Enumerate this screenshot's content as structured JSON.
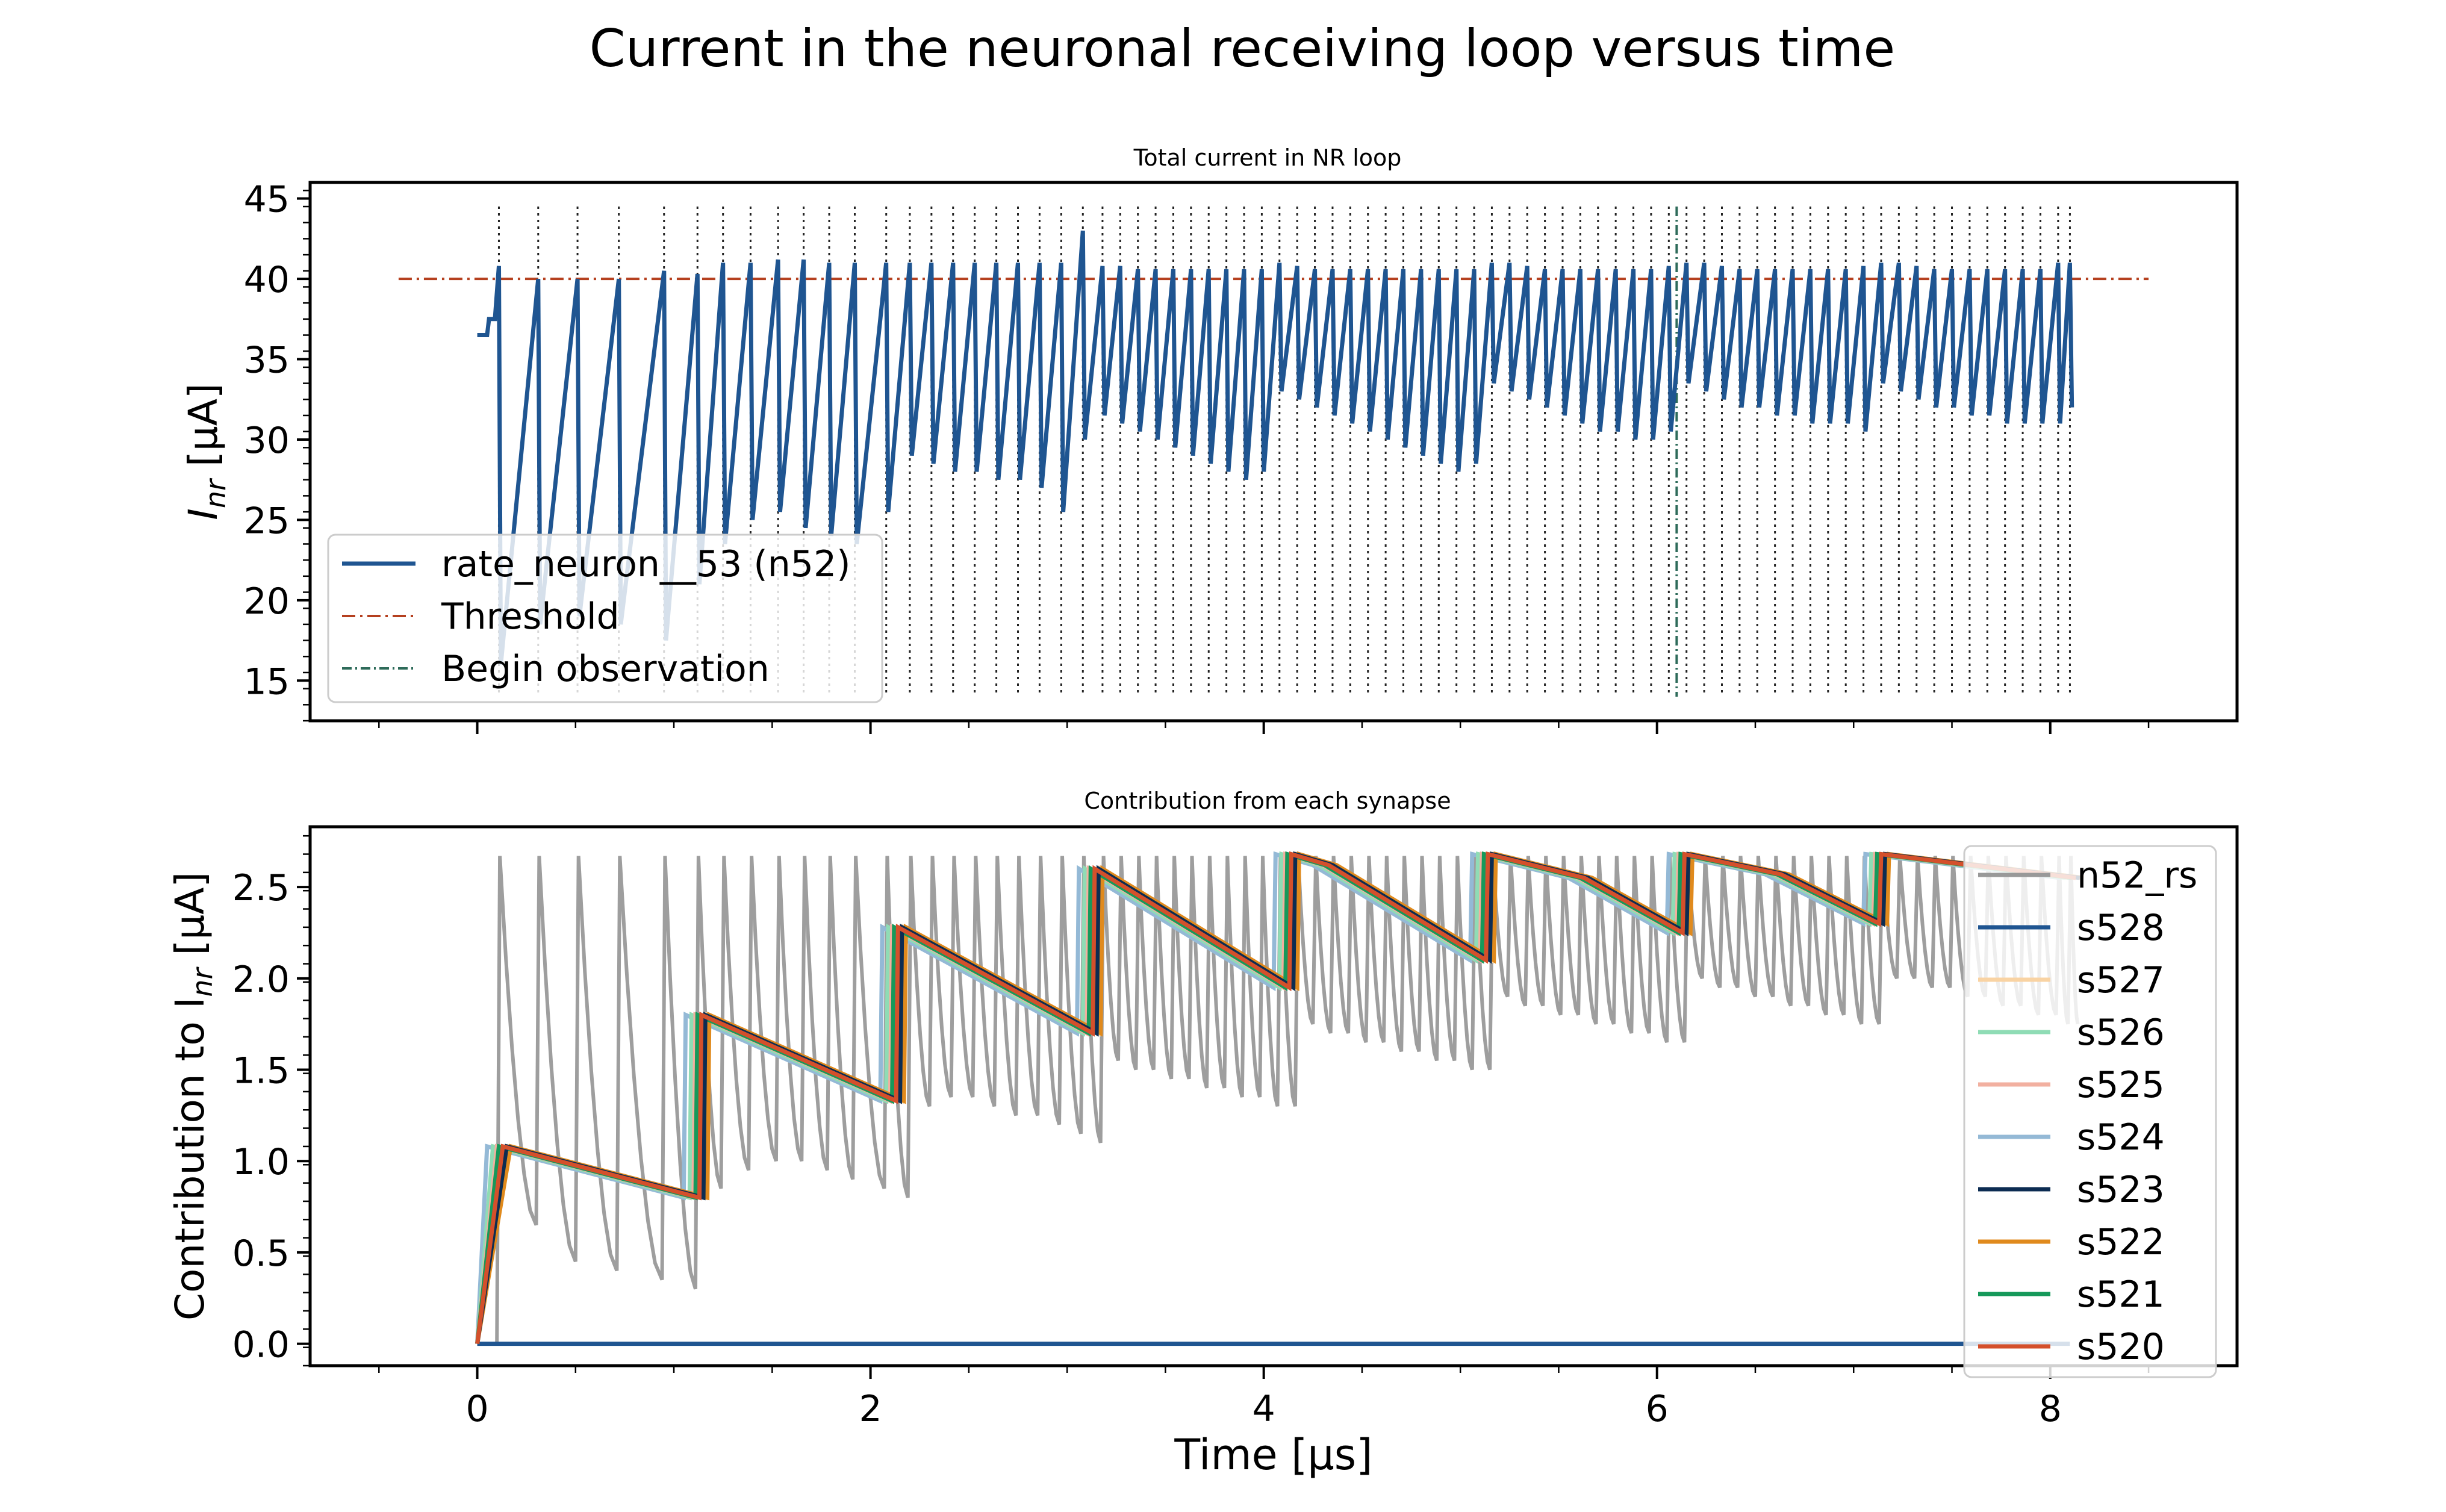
{
  "figure": {
    "title": "Current in the neuronal receiving loop versus time"
  },
  "chart_data": [
    {
      "type": "line",
      "title": "Total current in NR loop",
      "xlabel": "",
      "ylabel_main": "I",
      "ylabel_sub": "nr",
      "ylabel_unit": " [μA]",
      "xlim": [
        -0.85,
        8.95
      ],
      "ylim": [
        12.5,
        46.0
      ],
      "xticks": [
        0,
        2,
        4,
        6,
        8
      ],
      "yticks": [
        15,
        20,
        25,
        30,
        35,
        40,
        45
      ],
      "threshold": 40,
      "threshold_range": [
        -0.4,
        8.5
      ],
      "observation_start": 6.1,
      "spike_times": [
        0.11,
        0.31,
        0.51,
        0.72,
        0.95,
        1.12,
        1.25,
        1.39,
        1.53,
        1.66,
        1.79,
        1.92,
        2.08,
        2.2,
        2.31,
        2.42,
        2.53,
        2.64,
        2.75,
        2.86,
        2.97,
        3.08,
        3.18,
        3.27,
        3.36,
        3.45,
        3.54,
        3.63,
        3.72,
        3.81,
        3.9,
        3.99,
        4.08,
        4.17,
        4.26,
        4.35,
        4.44,
        4.53,
        4.62,
        4.71,
        4.8,
        4.89,
        4.98,
        5.07,
        5.16,
        5.25,
        5.34,
        5.43,
        5.52,
        5.61,
        5.7,
        5.79,
        5.88,
        5.97,
        6.06,
        6.15,
        6.24,
        6.33,
        6.42,
        6.51,
        6.6,
        6.69,
        6.78,
        6.87,
        6.96,
        7.05,
        7.14,
        7.23,
        7.32,
        7.41,
        7.5,
        7.59,
        7.68,
        7.77,
        7.86,
        7.95,
        8.04,
        8.1
      ],
      "spike_line_range": [
        14,
        44.5
      ],
      "series": [
        {
          "name": "rate_neuron__53 (n52)",
          "color": "#1f5591",
          "values": [
            [
              0,
              36.5
            ],
            [
              0.05,
              36.5
            ],
            [
              0.06,
              37.5
            ],
            [
              0.09,
              37.5
            ],
            [
              0.11,
              40.8
            ],
            [
              0.12,
              16.0
            ],
            [
              0.31,
              40.0
            ],
            [
              0.32,
              18.5
            ],
            [
              0.51,
              40.0
            ],
            [
              0.52,
              19.0
            ],
            [
              0.72,
              40.0
            ],
            [
              0.73,
              18.5
            ],
            [
              0.95,
              40.5
            ],
            [
              0.96,
              17.5
            ],
            [
              1.12,
              40.3
            ],
            [
              1.13,
              21.0
            ],
            [
              1.25,
              41.0
            ],
            [
              1.26,
              23.5
            ],
            [
              1.39,
              41.0
            ],
            [
              1.4,
              25.0
            ],
            [
              1.53,
              41.2
            ],
            [
              1.54,
              25.5
            ],
            [
              1.66,
              41.2
            ],
            [
              1.67,
              24.5
            ],
            [
              1.79,
              41.0
            ],
            [
              1.8,
              24.0
            ],
            [
              1.92,
              41.0
            ],
            [
              1.93,
              23.5
            ],
            [
              2.08,
              41.0
            ],
            [
              2.09,
              25.5
            ],
            [
              2.2,
              41.0
            ],
            [
              2.21,
              29.0
            ],
            [
              2.31,
              41.0
            ],
            [
              2.32,
              28.5
            ],
            [
              2.42,
              41.0
            ],
            [
              2.43,
              28.0
            ],
            [
              2.53,
              41.0
            ],
            [
              2.54,
              28.0
            ],
            [
              2.64,
              41.0
            ],
            [
              2.65,
              27.5
            ],
            [
              2.75,
              41.0
            ],
            [
              2.76,
              27.5
            ],
            [
              2.86,
              41.0
            ],
            [
              2.87,
              27.0
            ],
            [
              2.97,
              41.0
            ],
            [
              2.98,
              25.5
            ],
            [
              3.08,
              43.0
            ],
            [
              3.09,
              30.0
            ],
            [
              3.18,
              40.8
            ],
            [
              3.19,
              31.5
            ],
            [
              3.27,
              40.8
            ],
            [
              3.28,
              31.0
            ],
            [
              3.36,
              40.6
            ],
            [
              3.37,
              30.5
            ],
            [
              3.45,
              40.6
            ],
            [
              3.46,
              30.0
            ],
            [
              3.54,
              40.6
            ],
            [
              3.55,
              29.5
            ],
            [
              3.63,
              40.6
            ],
            [
              3.64,
              29.0
            ],
            [
              3.72,
              40.6
            ],
            [
              3.73,
              28.5
            ],
            [
              3.81,
              40.6
            ],
            [
              3.82,
              28.0
            ],
            [
              3.9,
              40.6
            ],
            [
              3.91,
              27.5
            ],
            [
              3.99,
              40.6
            ],
            [
              4.0,
              28.0
            ],
            [
              4.08,
              41.0
            ],
            [
              4.09,
              33.0
            ],
            [
              4.17,
              40.8
            ],
            [
              4.18,
              32.5
            ],
            [
              4.26,
              40.6
            ],
            [
              4.27,
              32.0
            ],
            [
              4.35,
              40.6
            ],
            [
              4.36,
              31.5
            ],
            [
              4.44,
              40.6
            ],
            [
              4.45,
              31.0
            ],
            [
              4.53,
              40.6
            ],
            [
              4.54,
              30.5
            ],
            [
              4.62,
              40.6
            ],
            [
              4.63,
              30.0
            ],
            [
              4.71,
              40.6
            ],
            [
              4.72,
              29.5
            ],
            [
              4.8,
              40.6
            ],
            [
              4.81,
              29.0
            ],
            [
              4.89,
              40.6
            ],
            [
              4.9,
              28.5
            ],
            [
              4.98,
              40.6
            ],
            [
              4.99,
              28.0
            ],
            [
              5.07,
              40.6
            ],
            [
              5.08,
              28.5
            ],
            [
              5.16,
              41.0
            ],
            [
              5.17,
              33.5
            ],
            [
              5.25,
              41.0
            ],
            [
              5.26,
              33.0
            ],
            [
              5.34,
              40.8
            ],
            [
              5.35,
              32.5
            ],
            [
              5.43,
              40.6
            ],
            [
              5.44,
              32.0
            ],
            [
              5.52,
              40.6
            ],
            [
              5.53,
              31.5
            ],
            [
              5.61,
              40.6
            ],
            [
              5.62,
              31.0
            ],
            [
              5.7,
              40.6
            ],
            [
              5.71,
              30.5
            ],
            [
              5.79,
              40.6
            ],
            [
              5.8,
              30.5
            ],
            [
              5.88,
              40.6
            ],
            [
              5.89,
              30.0
            ],
            [
              5.97,
              40.6
            ],
            [
              5.98,
              30.0
            ],
            [
              6.06,
              40.8
            ],
            [
              6.07,
              30.5
            ],
            [
              6.15,
              41.0
            ],
            [
              6.16,
              33.5
            ],
            [
              6.24,
              41.0
            ],
            [
              6.25,
              33.0
            ],
            [
              6.33,
              40.8
            ],
            [
              6.34,
              32.5
            ],
            [
              6.42,
              40.6
            ],
            [
              6.43,
              32.0
            ],
            [
              6.51,
              40.6
            ],
            [
              6.52,
              32.0
            ],
            [
              6.6,
              40.6
            ],
            [
              6.61,
              31.5
            ],
            [
              6.69,
              40.6
            ],
            [
              6.7,
              31.5
            ],
            [
              6.78,
              40.6
            ],
            [
              6.79,
              31.0
            ],
            [
              6.87,
              40.6
            ],
            [
              6.88,
              31.0
            ],
            [
              6.96,
              40.6
            ],
            [
              6.97,
              31.0
            ],
            [
              7.05,
              40.8
            ],
            [
              7.06,
              30.5
            ],
            [
              7.14,
              41.0
            ],
            [
              7.15,
              33.5
            ],
            [
              7.23,
              41.0
            ],
            [
              7.24,
              33.0
            ],
            [
              7.32,
              40.8
            ],
            [
              7.33,
              32.5
            ],
            [
              7.41,
              40.6
            ],
            [
              7.42,
              32.0
            ],
            [
              7.5,
              40.6
            ],
            [
              7.51,
              32.0
            ],
            [
              7.59,
              40.6
            ],
            [
              7.6,
              31.5
            ],
            [
              7.68,
              40.6
            ],
            [
              7.69,
              31.5
            ],
            [
              7.77,
              40.6
            ],
            [
              7.78,
              31.0
            ],
            [
              7.86,
              40.6
            ],
            [
              7.87,
              31.0
            ],
            [
              7.95,
              40.6
            ],
            [
              7.96,
              31.0
            ],
            [
              8.04,
              41.0
            ],
            [
              8.05,
              31.0
            ],
            [
              8.1,
              41.0
            ],
            [
              8.11,
              32.0
            ]
          ]
        },
        {
          "name": "Threshold",
          "color": "#b5401f"
        },
        {
          "name": "Begin observation",
          "color": "#2e6b5a"
        }
      ],
      "legend": "lower-left"
    },
    {
      "type": "line",
      "title": "Contribution from each synapse",
      "xlabel": "Time [μs]",
      "ylabel_main": "Contribution to I",
      "ylabel_sub": "nr",
      "ylabel_unit": " [μA]",
      "xlim": [
        -0.85,
        8.95
      ],
      "ylim": [
        -0.12,
        2.83
      ],
      "xticks": [
        0,
        2,
        4,
        6,
        8
      ],
      "yticks": [
        0.0,
        0.5,
        1.0,
        1.5,
        2.0,
        2.5
      ],
      "legend": "upper-right",
      "spike_times": [
        0.11,
        0.31,
        0.51,
        0.72,
        0.95,
        1.12,
        1.25,
        1.39,
        1.53,
        1.66,
        1.79,
        1.92,
        2.08,
        2.2,
        2.31,
        2.42,
        2.53,
        2.64,
        2.75,
        2.86,
        2.97,
        3.08,
        3.18,
        3.27,
        3.36,
        3.45,
        3.54,
        3.63,
        3.72,
        3.81,
        3.9,
        3.99,
        4.08,
        4.17,
        4.26,
        4.35,
        4.44,
        4.53,
        4.62,
        4.71,
        4.8,
        4.89,
        4.98,
        5.07,
        5.16,
        5.25,
        5.34,
        5.43,
        5.52,
        5.61,
        5.7,
        5.79,
        5.88,
        5.97,
        6.06,
        6.15,
        6.24,
        6.33,
        6.42,
        6.51,
        6.6,
        6.69,
        6.78,
        6.87,
        6.96,
        7.05,
        7.14,
        7.23,
        7.32,
        7.41,
        7.5,
        7.59,
        7.68,
        7.77,
        7.86,
        7.95,
        8.04,
        8.1
      ],
      "rs_troughs": [
        0.65,
        0.45,
        0.4,
        0.35,
        0.3,
        0.85,
        0.95,
        1.0,
        1.0,
        0.95,
        0.9,
        0.85,
        0.8,
        1.3,
        1.35,
        1.35,
        1.3,
        1.25,
        1.25,
        1.2,
        1.15,
        1.1,
        1.55,
        1.5,
        1.5,
        1.45,
        1.45,
        1.4,
        1.4,
        1.35,
        1.35,
        1.3,
        1.3,
        1.75,
        1.7,
        1.7,
        1.65,
        1.65,
        1.6,
        1.6,
        1.55,
        1.55,
        1.5,
        1.5,
        1.9,
        1.85,
        1.85,
        1.8,
        1.8,
        1.75,
        1.75,
        1.7,
        1.7,
        1.65,
        1.65,
        2.0,
        1.95,
        1.95,
        1.9,
        1.9,
        1.85,
        1.85,
        1.8,
        1.8,
        1.75,
        1.75,
        2.0,
        2.0,
        1.95,
        1.95,
        1.9,
        1.9,
        1.85,
        1.85,
        1.8,
        1.8,
        1.75
      ],
      "rs_peak": 2.67,
      "synapse_points": [
        [
          0,
          0
        ],
        [
          0.1,
          1.08
        ],
        [
          1.1,
          0.8
        ],
        [
          1.11,
          1.8
        ],
        [
          2.1,
          1.33
        ],
        [
          2.11,
          2.28
        ],
        [
          3.1,
          1.7
        ],
        [
          3.11,
          2.6
        ],
        [
          4.1,
          1.95
        ],
        [
          4.11,
          2.68
        ],
        [
          4.3,
          2.62
        ],
        [
          5.1,
          2.1
        ],
        [
          5.11,
          2.68
        ],
        [
          5.6,
          2.55
        ],
        [
          6.1,
          2.25
        ],
        [
          6.11,
          2.68
        ],
        [
          6.6,
          2.57
        ],
        [
          7.1,
          2.3
        ],
        [
          7.11,
          2.68
        ],
        [
          8.1,
          2.55
        ]
      ],
      "synapse_offsets": {
        "s524": -0.05,
        "s526": -0.02,
        "s525": 0.0,
        "s521": 0.01,
        "s520": 0.03,
        "s523": 0.05,
        "s527": 0.06,
        "s522": 0.07
      },
      "s528_values": [
        [
          0,
          0
        ],
        [
          8.1,
          0
        ]
      ],
      "series": [
        {
          "name": "n52_rs",
          "color": "#999999"
        },
        {
          "name": "s528",
          "color": "#1f5591"
        },
        {
          "name": "s527",
          "color": "#f9d3a3"
        },
        {
          "name": "s526",
          "color": "#8fdcb5"
        },
        {
          "name": "s525",
          "color": "#f2b0a0"
        },
        {
          "name": "s524",
          "color": "#94b9d6"
        },
        {
          "name": "s523",
          "color": "#0c2c52"
        },
        {
          "name": "s522",
          "color": "#e08a1d"
        },
        {
          "name": "s521",
          "color": "#16995a"
        },
        {
          "name": "s520",
          "color": "#d4502b"
        }
      ]
    }
  ]
}
